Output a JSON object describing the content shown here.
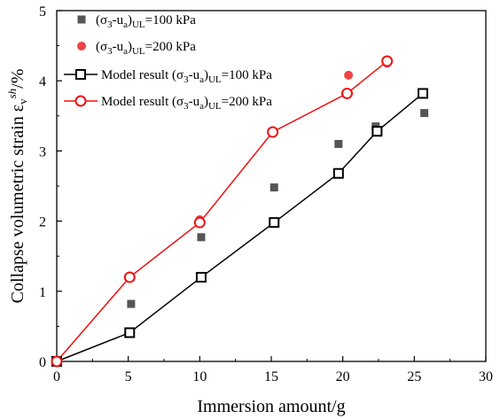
{
  "chart_data": {
    "type": "scatter",
    "xlabel": "Immersion amount/g",
    "ylabel": "Collapse volumetric strain ε_v^sh/%",
    "ylabel_parts": {
      "main": "Collapse volumetric strain ε",
      "sub": "v",
      "sup": "sh",
      "tail": "/%"
    },
    "xlim": [
      0,
      30
    ],
    "ylim": [
      0,
      5
    ],
    "x_ticks": [
      "0",
      "5",
      "10",
      "15",
      "20",
      "25",
      "30"
    ],
    "y_ticks": [
      "0",
      "1",
      "2",
      "3",
      "4",
      "5"
    ],
    "grid": false,
    "legend_position": "top-left",
    "series": [
      {
        "name": "(σ3-ua)UL=100 kPa",
        "legend_parts": {
          "pre": "(σ",
          "s1": "3",
          "mid": "-u",
          "s2": "a",
          "close": ")",
          "s3": "UL",
          "post": "=100 kPa"
        },
        "kind": "scatter",
        "marker": "filled-square",
        "color": "#555555",
        "x": [
          0,
          5.2,
          10.1,
          15.2,
          19.7,
          22.3,
          25.7
        ],
        "y": [
          0,
          0.82,
          1.77,
          2.48,
          3.1,
          3.35,
          3.54
        ]
      },
      {
        "name": "(σ3-ua)UL=200 kPa",
        "legend_parts": {
          "pre": "(σ",
          "s1": "3",
          "mid": "-u",
          "s2": "a",
          "close": ")",
          "s3": "UL",
          "post": "=200 kPa"
        },
        "kind": "scatter",
        "marker": "filled-circle",
        "color": "#ee4444",
        "x": [
          0,
          5.1,
          10.0,
          15.1,
          20.4,
          23.1
        ],
        "y": [
          0,
          1.21,
          2.02,
          3.25,
          4.08,
          4.25
        ]
      },
      {
        "name": "Model result (σ3-ua)UL=100 kPa",
        "legend_parts": {
          "pre": "Model result (σ",
          "s1": "3",
          "mid": "-u",
          "s2": "a",
          "close": ")",
          "s3": "UL",
          "post": "=100 kPa"
        },
        "kind": "line",
        "marker": "open-square",
        "color": "#000000",
        "x": [
          0,
          5.1,
          10.1,
          15.2,
          19.7,
          22.4,
          25.6
        ],
        "y": [
          0,
          0.41,
          1.2,
          1.98,
          2.68,
          3.28,
          3.82
        ]
      },
      {
        "name": "Model result (σ3-ua)UL=200 kPa",
        "legend_parts": {
          "pre": "Model result (σ",
          "s1": "3",
          "mid": "-u",
          "s2": "a",
          "close": ")",
          "s3": "UL",
          "post": "=200 kPa"
        },
        "kind": "line",
        "marker": "open-circle",
        "color": "#ee1111",
        "x": [
          0,
          5.1,
          10.0,
          15.1,
          20.3,
          23.1
        ],
        "y": [
          0,
          1.2,
          1.98,
          3.27,
          3.82,
          4.28
        ]
      }
    ]
  }
}
